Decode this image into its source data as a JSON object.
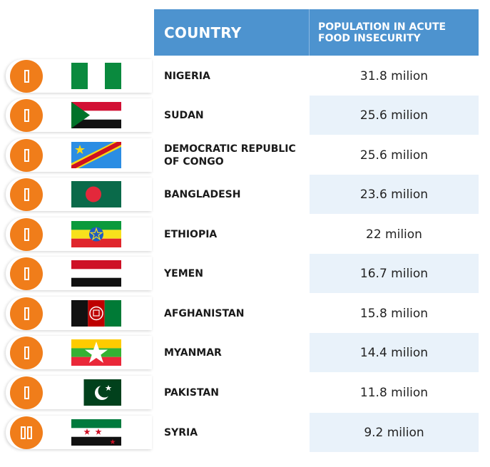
{
  "header": {
    "country_label": "COUNTRY",
    "population_label": "POPULATION IN ACUTE FOOD INSECURITY",
    "background_color": "#4d93cf"
  },
  "accent_color": "#f07d1a",
  "rows": [
    {
      "country": "NIGERIA",
      "value": "31.8 milion",
      "flag": "nigeria-flag-icon",
      "rank_glyphs": 1
    },
    {
      "country": "SUDAN",
      "value": "25.6 milion",
      "flag": "sudan-flag-icon",
      "rank_glyphs": 1
    },
    {
      "country": "DEMOCRATIC REPUBLIC OF CONGO",
      "value": "25.6 milion",
      "flag": "dr-congo-flag-icon",
      "rank_glyphs": 1
    },
    {
      "country": "BANGLADESH",
      "value": "23.6 milion",
      "flag": "bangladesh-flag-icon",
      "rank_glyphs": 1
    },
    {
      "country": "ETHIOPIA",
      "value": "22 milion",
      "flag": "ethiopia-flag-icon",
      "rank_glyphs": 1
    },
    {
      "country": "YEMEN",
      "value": "16.7 milion",
      "flag": "yemen-flag-icon",
      "rank_glyphs": 1
    },
    {
      "country": "AFGHANISTAN",
      "value": "15.8 milion",
      "flag": "afghanistan-flag-icon",
      "rank_glyphs": 1
    },
    {
      "country": "MYANMAR",
      "value": "14.4 milion",
      "flag": "myanmar-flag-icon",
      "rank_glyphs": 1
    },
    {
      "country": "PAKISTAN",
      "value": "11.8 milion",
      "flag": "pakistan-flag-icon",
      "rank_glyphs": 1
    },
    {
      "country": "SYRIA",
      "value": "9.2 milion",
      "flag": "syria-flag-icon",
      "rank_glyphs": 2
    }
  ]
}
